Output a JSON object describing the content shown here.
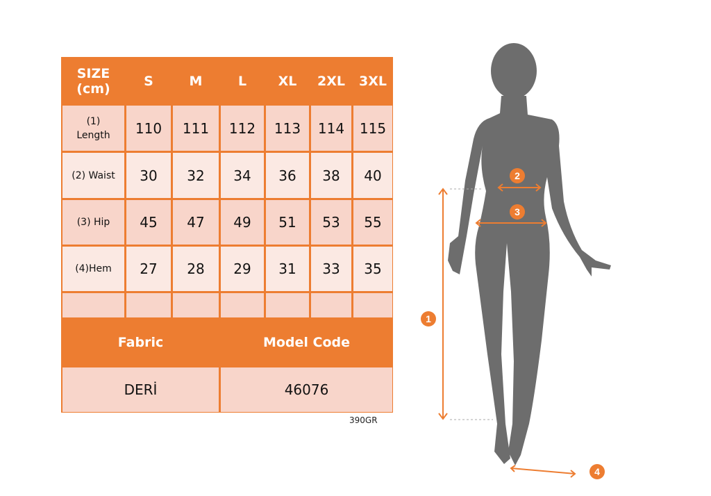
{
  "table": {
    "header": [
      "SIZE\n(cm)",
      "S",
      "M",
      "L",
      "XL",
      "2XL",
      "3XL"
    ],
    "header_size_line1": "SIZE",
    "header_size_line2": "(cm)",
    "rows": [
      {
        "label_line1": "(1)",
        "label_line2": "Length",
        "values": [
          "110",
          "111",
          "112",
          "113",
          "114",
          "115"
        ]
      },
      {
        "label_line1": "(2) Waist",
        "label_line2": "",
        "values": [
          "30",
          "32",
          "34",
          "36",
          "38",
          "40"
        ]
      },
      {
        "label_line1": "(3) Hip",
        "label_line2": "",
        "values": [
          "45",
          "47",
          "49",
          "51",
          "53",
          "55"
        ]
      },
      {
        "label_line1": "(4)Hem",
        "label_line2": "",
        "values": [
          "27",
          "28",
          "29",
          "31",
          "33",
          "35"
        ]
      }
    ],
    "fabric_label": "Fabric",
    "model_code_label": "Model Code",
    "fabric_value": "DERİ",
    "model_code_value": "46076"
  },
  "footnote": "390GR",
  "figure": {
    "markers": [
      "1",
      "2",
      "3",
      "4"
    ],
    "accent_color": "#ed7d31",
    "silhouette_color": "#6d6d6d"
  }
}
